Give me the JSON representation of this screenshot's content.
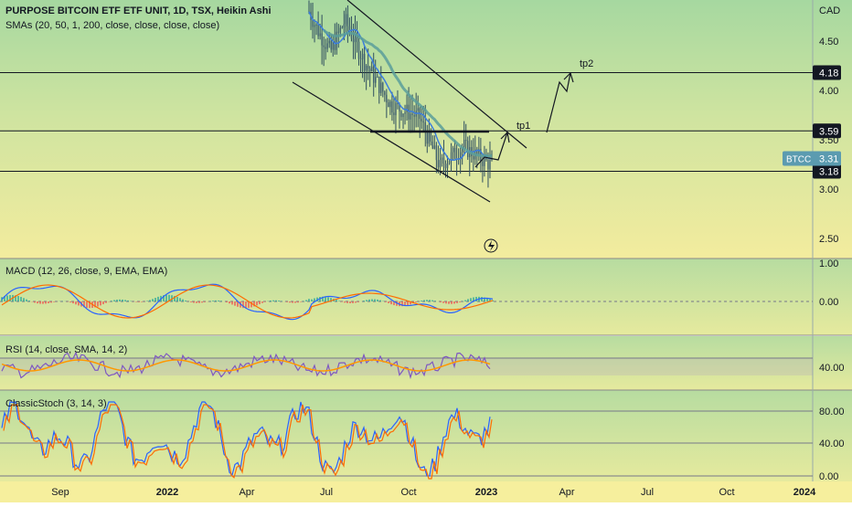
{
  "main": {
    "title": "PURPOSE BITCOIN ETF ETF UNIT, 1D, TSX, Heikin Ashi",
    "sma_legend": "SMAs (20, 50, 1, 200, close, close, close, close)",
    "currency": "CAD",
    "price_ticks": [
      "4.50",
      "4.00",
      "3.50",
      "3.00",
      "2.50"
    ],
    "levels": [
      "4.18",
      "3.59",
      "3.18"
    ],
    "symbol_badge": "BTCC",
    "last_price": "3.31",
    "annotations": [
      "tp1",
      "tp2"
    ],
    "flash_icon": "lightning-icon"
  },
  "macd": {
    "label": "MACD (12, 26, close, 9, EMA, EMA)",
    "ticks": [
      "1.00",
      "0.00"
    ]
  },
  "rsi": {
    "label": "RSI (14, close, SMA, 14, 2)",
    "ticks": [
      "40.00"
    ]
  },
  "stoch": {
    "label": "ClassicStoch (3, 14, 3)",
    "ticks": [
      "80.00",
      "40.00",
      "0.00"
    ]
  },
  "time_axis": [
    "Sep",
    "2022",
    "Apr",
    "Jul",
    "Oct",
    "2023",
    "Apr",
    "Jul",
    "Oct",
    "2024"
  ],
  "colors": {
    "up": "#26a69a",
    "down": "#ef5350",
    "sma_fast": "#3b7ddd",
    "sma_slow": "#5a9e9a",
    "macd_line": "#2962ff",
    "signal_line": "#ff6d00",
    "rsi_line": "#7e57c2",
    "rsi_ma": "#ff9800",
    "stoch_k": "#2962ff",
    "stoch_d": "#ff6d00",
    "badge_bg": "#5b9bb0",
    "level_bg": "#131722"
  }
}
